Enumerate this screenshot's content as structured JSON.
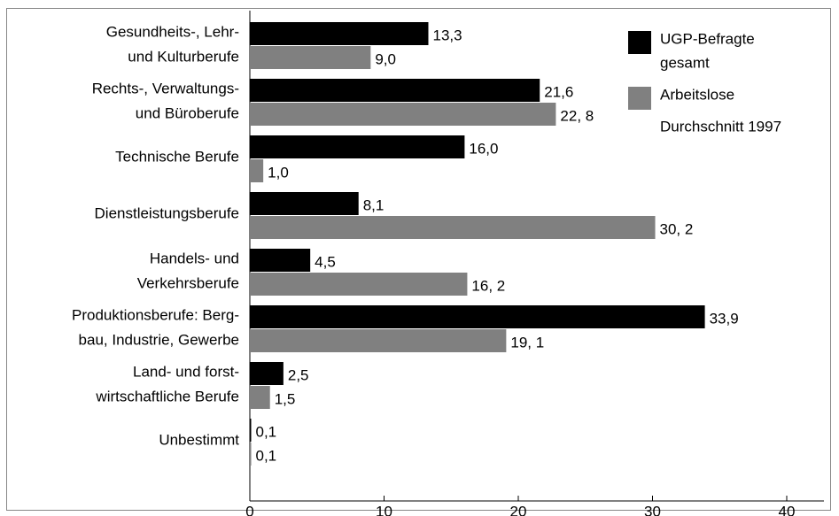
{
  "chart_data": {
    "type": "bar",
    "orientation": "horizontal",
    "categories": [
      [
        "Gesundheits-, Lehr-",
        "und Kulturberufe"
      ],
      [
        "Rechts-, Verwaltungs-",
        "und Büroberufe"
      ],
      [
        "Technische Berufe"
      ],
      [
        "Dienstleistungsberufe"
      ],
      [
        "Handels- und",
        "Verkehrsberufe"
      ],
      [
        "Produktionsberufe: Berg-",
        "bau, Industrie, Gewerbe"
      ],
      [
        "Land- und forst-",
        "wirtschaftliche Berufe"
      ],
      [
        "Unbestimmt"
      ]
    ],
    "series": [
      {
        "name": [
          "UGP-Befragte",
          "gesamt"
        ],
        "color": "#000000",
        "values": [
          13.3,
          21.6,
          16.0,
          8.1,
          4.5,
          33.9,
          2.5,
          0.1
        ],
        "value_labels": [
          "13,3",
          "21,6",
          "16,0",
          "8,1",
          "4,5",
          "33,9",
          "2,5",
          "0,1"
        ]
      },
      {
        "name": [
          "Arbeitslose",
          "Durchschnitt 1997"
        ],
        "color": "#808080",
        "values": [
          9.0,
          22.8,
          1.0,
          30.2,
          16.2,
          19.1,
          1.5,
          0.1
        ],
        "value_labels": [
          "9,0",
          "22, 8",
          "1,0",
          "30, 2",
          "16, 2",
          "19, 1",
          "1,5",
          "0,1"
        ]
      }
    ],
    "xlim": [
      0,
      40
    ],
    "xticks": [
      0,
      10,
      20,
      30,
      40
    ],
    "legend": "upper right"
  }
}
